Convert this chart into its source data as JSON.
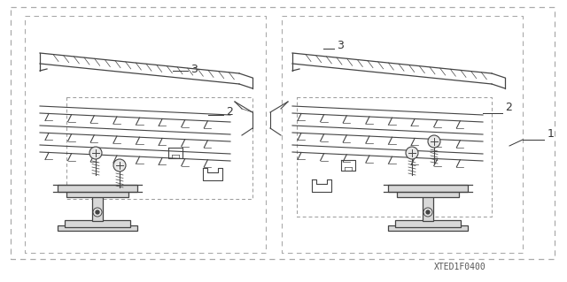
{
  "part_number": "XTED1F0400",
  "background_color": "#ffffff",
  "line_color": "#444444",
  "hatch_color": "#555555",
  "dash_color": "#888888",
  "font_size_labels": 8,
  "font_size_partnum": 7,
  "panels": [
    {
      "ox": 40,
      "oy": 25
    },
    {
      "ox": 328,
      "oy": 25
    }
  ]
}
